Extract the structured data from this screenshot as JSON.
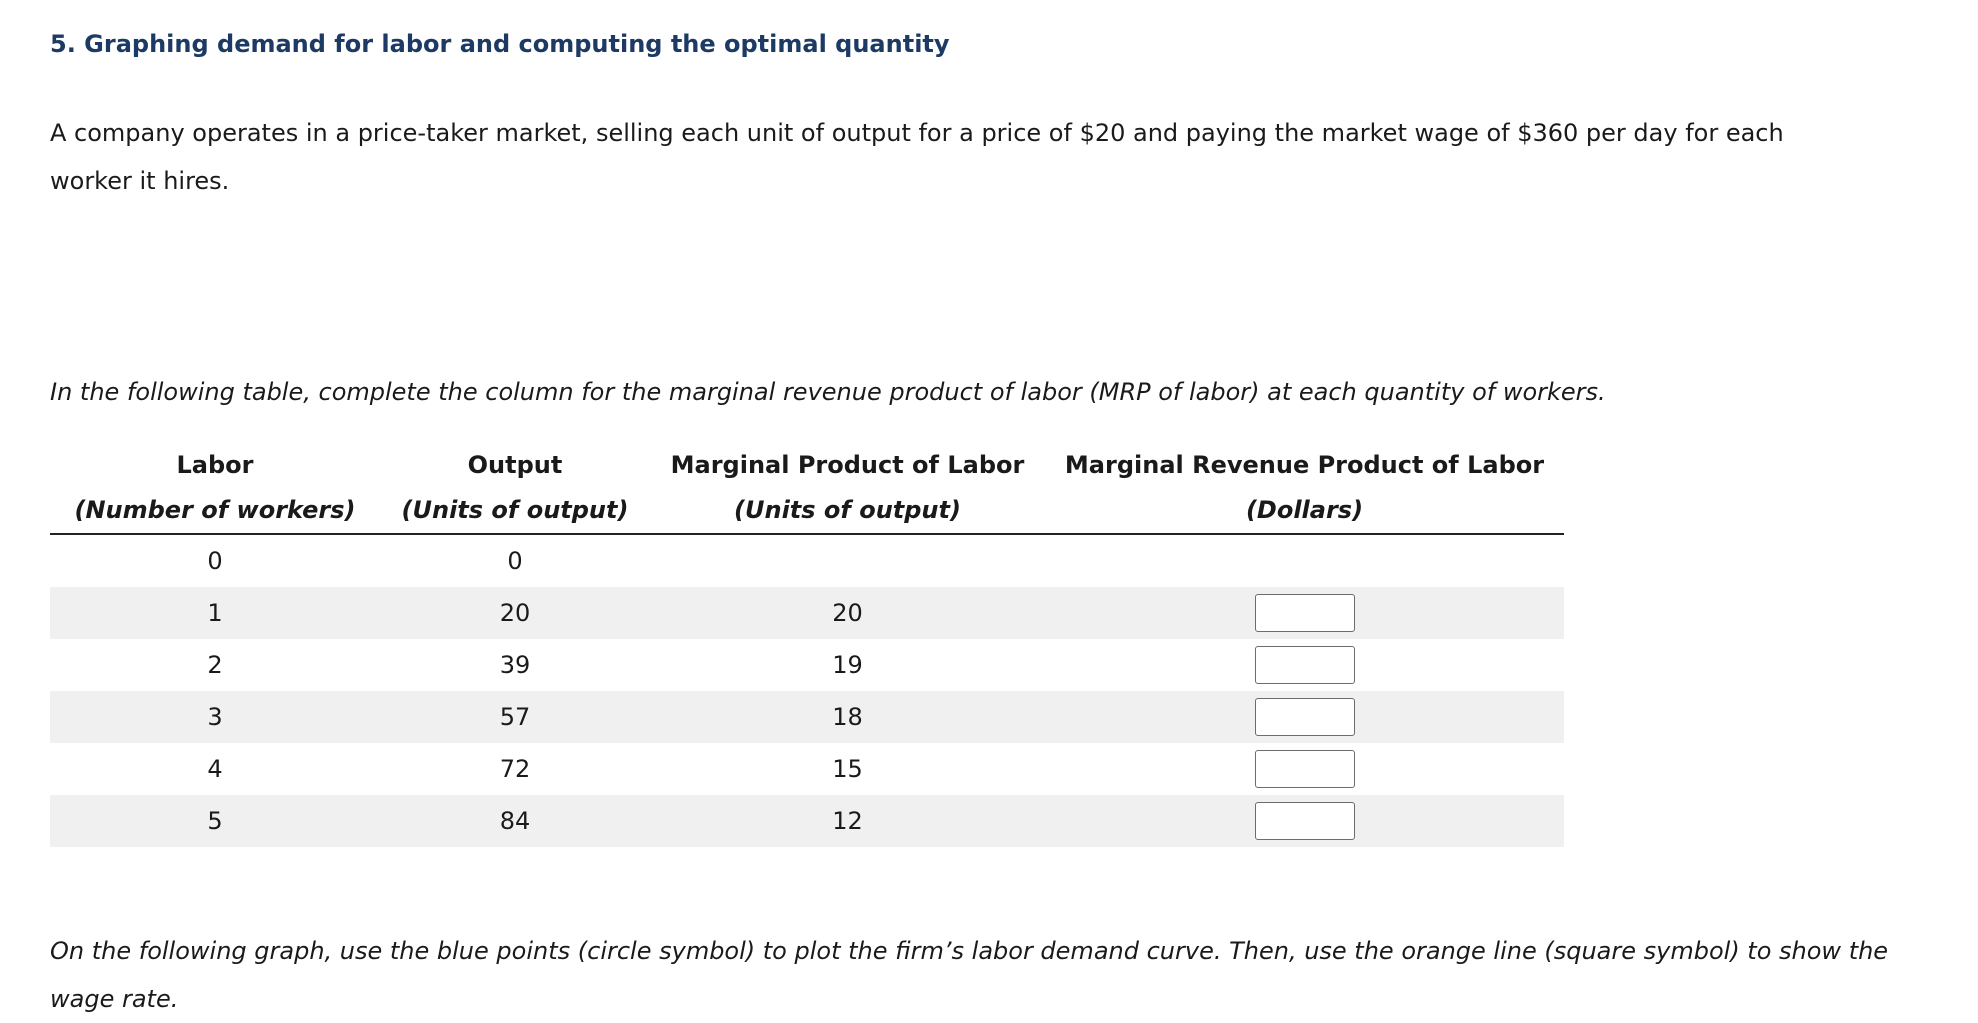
{
  "title": "5. Graphing demand for labor and computing the optimal quantity",
  "intro": "A company operates in a price-taker market, selling each unit of output for a price of $20 and paying the market wage of $360 per day for each worker it hires.",
  "table_instructions": "In the following table, complete the column for the marginal revenue product of labor (MRP of labor) at each quantity of workers.",
  "table": {
    "headers": [
      "Labor",
      "Output",
      "Marginal Product of Labor",
      "Marginal Revenue Product of Labor"
    ],
    "subheaders": [
      "(Number of workers)",
      "(Units of output)",
      "(Units of output)",
      "(Dollars)"
    ],
    "rows": [
      {
        "labor": "0",
        "output": "0",
        "mpl": "",
        "mrp": ""
      },
      {
        "labor": "1",
        "output": "20",
        "mpl": "20",
        "mrp": ""
      },
      {
        "labor": "2",
        "output": "39",
        "mpl": "19",
        "mrp": ""
      },
      {
        "labor": "3",
        "output": "57",
        "mpl": "18",
        "mrp": ""
      },
      {
        "labor": "4",
        "output": "72",
        "mpl": "15",
        "mrp": ""
      },
      {
        "labor": "5",
        "output": "84",
        "mpl": "12",
        "mrp": ""
      }
    ]
  },
  "graph_instructions": "On the following graph, use the blue points (circle symbol) to plot the firm’s labor demand curve. Then, use the orange line (square symbol) to show the wage rate."
}
